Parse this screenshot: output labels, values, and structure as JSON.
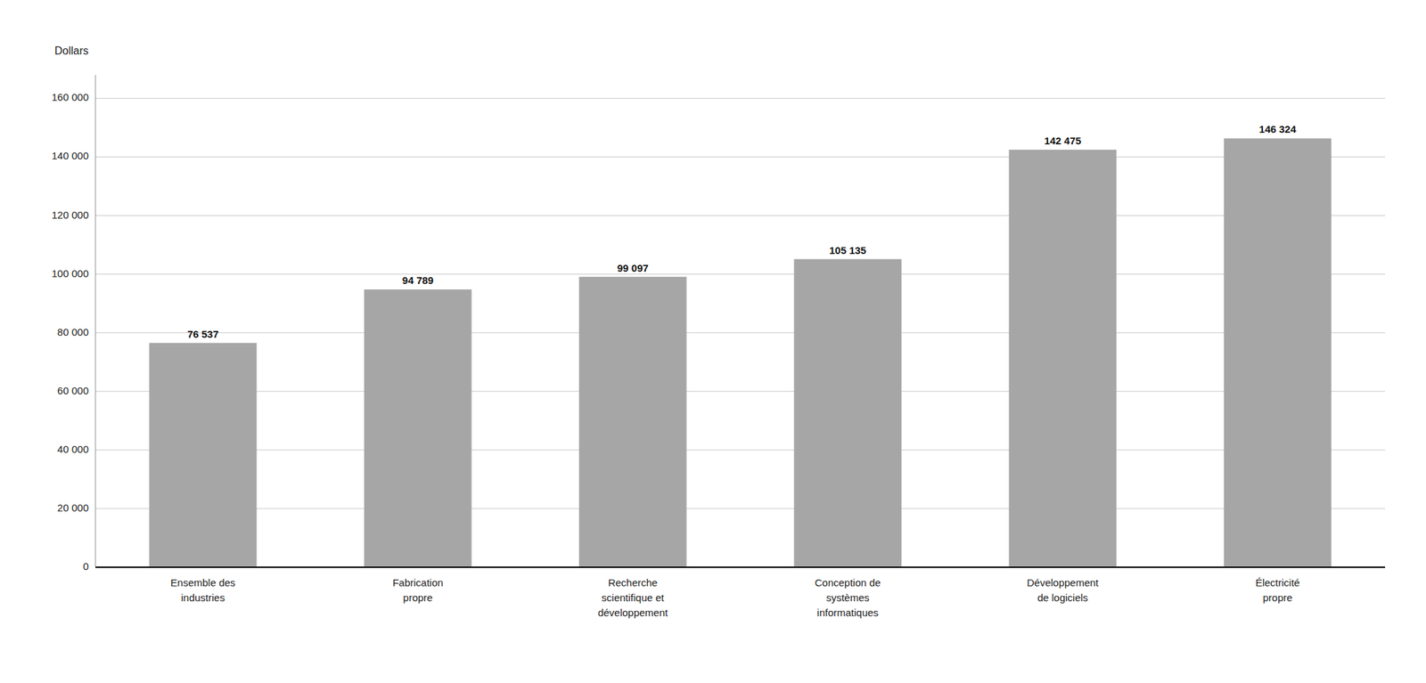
{
  "chart_data": {
    "type": "bar",
    "ylabel": "Dollars",
    "categories": [
      "Ensemble des\nindustries",
      "Fabrication\npropre",
      "Recherche\nscientifique et\ndéveloppement",
      "Conception de\nsystèmes\ninformatiques",
      "Développement\nde logiciels",
      "Électricité\npropre"
    ],
    "values": [
      76537,
      94789,
      99097,
      105135,
      142475,
      146324
    ],
    "value_labels": [
      "76 537",
      "94 789",
      "99 097",
      "105 135",
      "142 475",
      "146 324"
    ],
    "data_labels": true,
    "color": "#a6a6a6",
    "ylim": [
      0,
      168000
    ],
    "yticks": [
      0,
      {
        "value": 20000,
        "label": "20 000"
      },
      {
        "value": 40000,
        "label": "40 000"
      },
      {
        "value": 60000,
        "label": "60 000"
      },
      {
        "value": 80000,
        "label": "80 000"
      },
      {
        "value": 100000,
        "label": "100 000"
      },
      {
        "value": 120000,
        "label": "120 000"
      },
      {
        "value": 140000,
        "label": "140 000"
      },
      {
        "value": 160000,
        "label": "160 000"
      }
    ],
    "grid": true
  }
}
